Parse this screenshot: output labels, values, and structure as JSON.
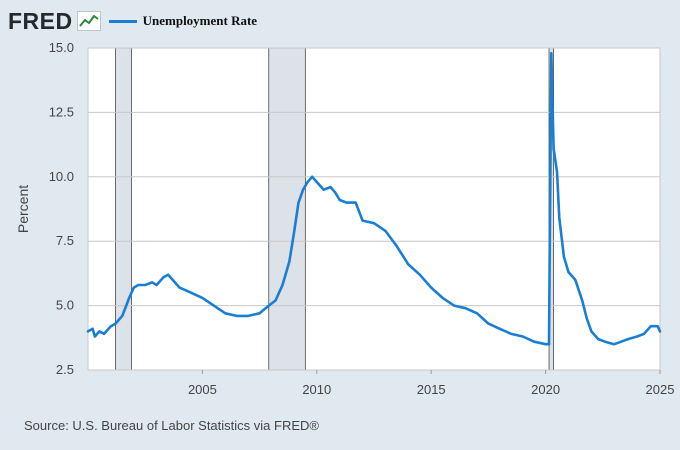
{
  "header": {
    "logo_text": "FRED",
    "legend_label": "Unemployment Rate",
    "series_color": "#1a7fd4"
  },
  "source": "Source: U.S. Bureau of Labor Statistics via FRED®",
  "chart_data": {
    "type": "line",
    "title": "",
    "xlabel": "",
    "ylabel": "Percent",
    "xlim": [
      2000.0,
      2025.0
    ],
    "ylim": [
      2.5,
      15.0
    ],
    "yticks": [
      2.5,
      5.0,
      7.5,
      10.0,
      12.5,
      15.0
    ],
    "ytick_labels": [
      "2.5",
      "5.0",
      "7.5",
      "10.0",
      "12.5",
      "15.0"
    ],
    "xticks": [
      2005,
      2010,
      2015,
      2020,
      2025
    ],
    "xtick_labels": [
      "2005",
      "2010",
      "2015",
      "2020",
      "2025"
    ],
    "grid": "horizontal",
    "recessions": [
      [
        2001.2,
        2001.9
      ],
      [
        2007.9,
        2009.5
      ],
      [
        2020.15,
        2020.35
      ]
    ],
    "colors": {
      "line": "#1a7fd4",
      "recession": "#dde1e8",
      "grid": "#c8c8c8",
      "plot_bg": "#ffffff"
    },
    "series": [
      {
        "x": [
          2000.0,
          2000.2,
          2000.3,
          2000.5,
          2000.7,
          2000.9,
          2001.0,
          2001.2,
          2001.5,
          2001.8,
          2002.0,
          2002.2,
          2002.5,
          2002.8,
          2003.0,
          2003.3,
          2003.5,
          2003.8,
          2004.0,
          2004.5,
          2005.0,
          2005.5,
          2006.0,
          2006.5,
          2007.0,
          2007.5,
          2007.9,
          2008.2,
          2008.5,
          2008.8,
          2009.0,
          2009.2,
          2009.4,
          2009.6,
          2009.8,
          2010.0,
          2010.3,
          2010.6,
          2010.8,
          2011.0,
          2011.3,
          2011.7,
          2012.0,
          2012.5,
          2013.0,
          2013.5,
          2014.0,
          2014.5,
          2015.0,
          2015.5,
          2016.0,
          2016.5,
          2017.0,
          2017.5,
          2018.0,
          2018.5,
          2019.0,
          2019.5,
          2020.0,
          2020.15,
          2020.25,
          2020.35,
          2020.5,
          2020.6,
          2020.8,
          2021.0,
          2021.3,
          2021.6,
          2021.8,
          2022.0,
          2022.3,
          2022.6,
          2023.0,
          2023.3,
          2023.6,
          2024.0,
          2024.3,
          2024.6,
          2024.9,
          2025.0
        ],
        "values": [
          4.0,
          4.1,
          3.8,
          4.0,
          3.9,
          4.1,
          4.2,
          4.3,
          4.6,
          5.3,
          5.7,
          5.8,
          5.8,
          5.9,
          5.8,
          6.1,
          6.2,
          5.9,
          5.7,
          5.5,
          5.3,
          5.0,
          4.7,
          4.6,
          4.6,
          4.7,
          5.0,
          5.2,
          5.8,
          6.7,
          7.8,
          9.0,
          9.5,
          9.8,
          10.0,
          9.8,
          9.5,
          9.6,
          9.4,
          9.1,
          9.0,
          9.0,
          8.3,
          8.2,
          7.9,
          7.3,
          6.6,
          6.2,
          5.7,
          5.3,
          5.0,
          4.9,
          4.7,
          4.3,
          4.1,
          3.9,
          3.8,
          3.6,
          3.5,
          3.5,
          14.8,
          11.1,
          10.2,
          8.4,
          6.9,
          6.3,
          6.0,
          5.2,
          4.5,
          4.0,
          3.7,
          3.6,
          3.5,
          3.6,
          3.7,
          3.8,
          3.9,
          4.2,
          4.2,
          4.0
        ]
      }
    ]
  }
}
